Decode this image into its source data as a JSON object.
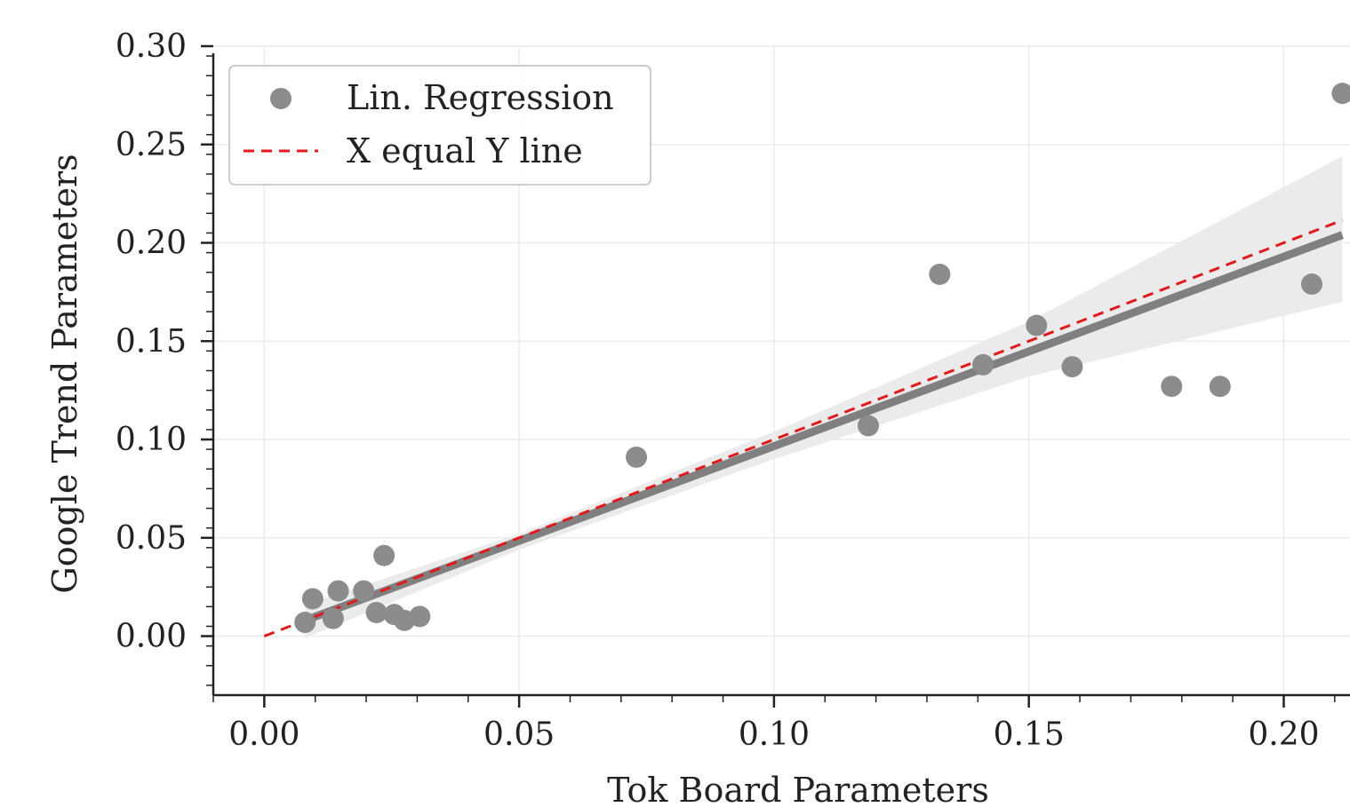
{
  "chart_data": {
    "type": "scatter",
    "xlabel": "Tok Board Parameters",
    "ylabel": "Google Trend Parameters",
    "xlim": [
      -0.01,
      0.213
    ],
    "ylim": [
      -0.03,
      0.3
    ],
    "x_ticks": [
      "0.00",
      "0.05",
      "0.10",
      "0.15",
      "0.20"
    ],
    "x_tick_values": [
      0.0,
      0.05,
      0.1,
      0.15,
      0.2
    ],
    "y_ticks": [
      "0.00",
      "0.05",
      "0.10",
      "0.15",
      "0.20",
      "0.25",
      "0.30"
    ],
    "y_tick_values": [
      0.0,
      0.05,
      0.1,
      0.15,
      0.2,
      0.25,
      0.3
    ],
    "grid": true,
    "legend_position": "top-left",
    "legend": [
      {
        "label": "Lin. Regression",
        "marker": "circle",
        "color": "#8c8c8c"
      },
      {
        "label": "X equal Y line",
        "marker": "dashed-line",
        "color": "#e31a1c"
      }
    ],
    "points": [
      {
        "x": 0.008,
        "y": 0.007
      },
      {
        "x": 0.0095,
        "y": 0.019
      },
      {
        "x": 0.0135,
        "y": 0.009
      },
      {
        "x": 0.0145,
        "y": 0.023
      },
      {
        "x": 0.0195,
        "y": 0.023
      },
      {
        "x": 0.022,
        "y": 0.012
      },
      {
        "x": 0.0235,
        "y": 0.041
      },
      {
        "x": 0.0255,
        "y": 0.011
      },
      {
        "x": 0.0275,
        "y": 0.008
      },
      {
        "x": 0.0305,
        "y": 0.01
      },
      {
        "x": 0.073,
        "y": 0.091
      },
      {
        "x": 0.1185,
        "y": 0.107
      },
      {
        "x": 0.1325,
        "y": 0.184
      },
      {
        "x": 0.141,
        "y": 0.138
      },
      {
        "x": 0.1515,
        "y": 0.158
      },
      {
        "x": 0.1585,
        "y": 0.137
      },
      {
        "x": 0.178,
        "y": 0.127
      },
      {
        "x": 0.1875,
        "y": 0.127
      },
      {
        "x": 0.2055,
        "y": 0.179
      },
      {
        "x": 0.2115,
        "y": 0.276
      }
    ],
    "regression_line": {
      "x": [
        0.008,
        0.2115
      ],
      "y": [
        0.008,
        0.204
      ]
    },
    "confidence_band": {
      "x": [
        0.008,
        0.05,
        0.1,
        0.15,
        0.2115
      ],
      "lower": [
        -0.001,
        0.044,
        0.09,
        0.132,
        0.17
      ],
      "upper": [
        0.016,
        0.052,
        0.104,
        0.16,
        0.244
      ]
    },
    "identity_line": {
      "x": [
        0.0,
        0.2115
      ],
      "y": [
        0.0,
        0.2115
      ]
    },
    "colors": {
      "points": "#8c8c8c",
      "regression": "#808080",
      "band": "#ebebeb",
      "identity": "#e31a1c",
      "grid": "#ebebeb",
      "axis": "#222222"
    }
  }
}
